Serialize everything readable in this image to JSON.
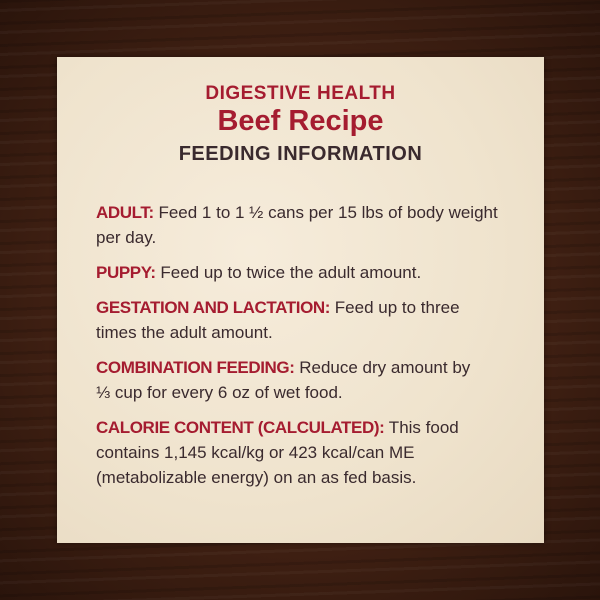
{
  "header": {
    "line1": "DIGESTIVE HEALTH",
    "title": "Beef Recipe",
    "subtitle": "FEEDING INFORMATION"
  },
  "sections": [
    {
      "label": "ADULT:",
      "lines": [
        " Feed 1 to 1 ½ cans per 15 lbs of body weight",
        "per day."
      ]
    },
    {
      "label": "PUPPY:",
      "lines": [
        " Feed up to twice the adult amount."
      ]
    },
    {
      "label": "GESTATION AND LACTATION:",
      "lines": [
        " Feed up to three",
        "times the adult amount."
      ]
    },
    {
      "label": "COMBINATION FEEDING:",
      "lines": [
        " Reduce dry amount by",
        "⅓ cup for every 6 oz of wet food."
      ]
    },
    {
      "label": "CALORIE CONTENT (CALCULATED):",
      "lines": [
        " This food",
        "contains 1,145 kcal/kg or 423 kcal/can ME",
        "(metabolizable energy) on an as fed basis."
      ]
    }
  ],
  "colors": {
    "accent": "#a51c30",
    "text": "#3a2a2e",
    "panel": "#f3e8d4",
    "background": "#3e1f12"
  }
}
